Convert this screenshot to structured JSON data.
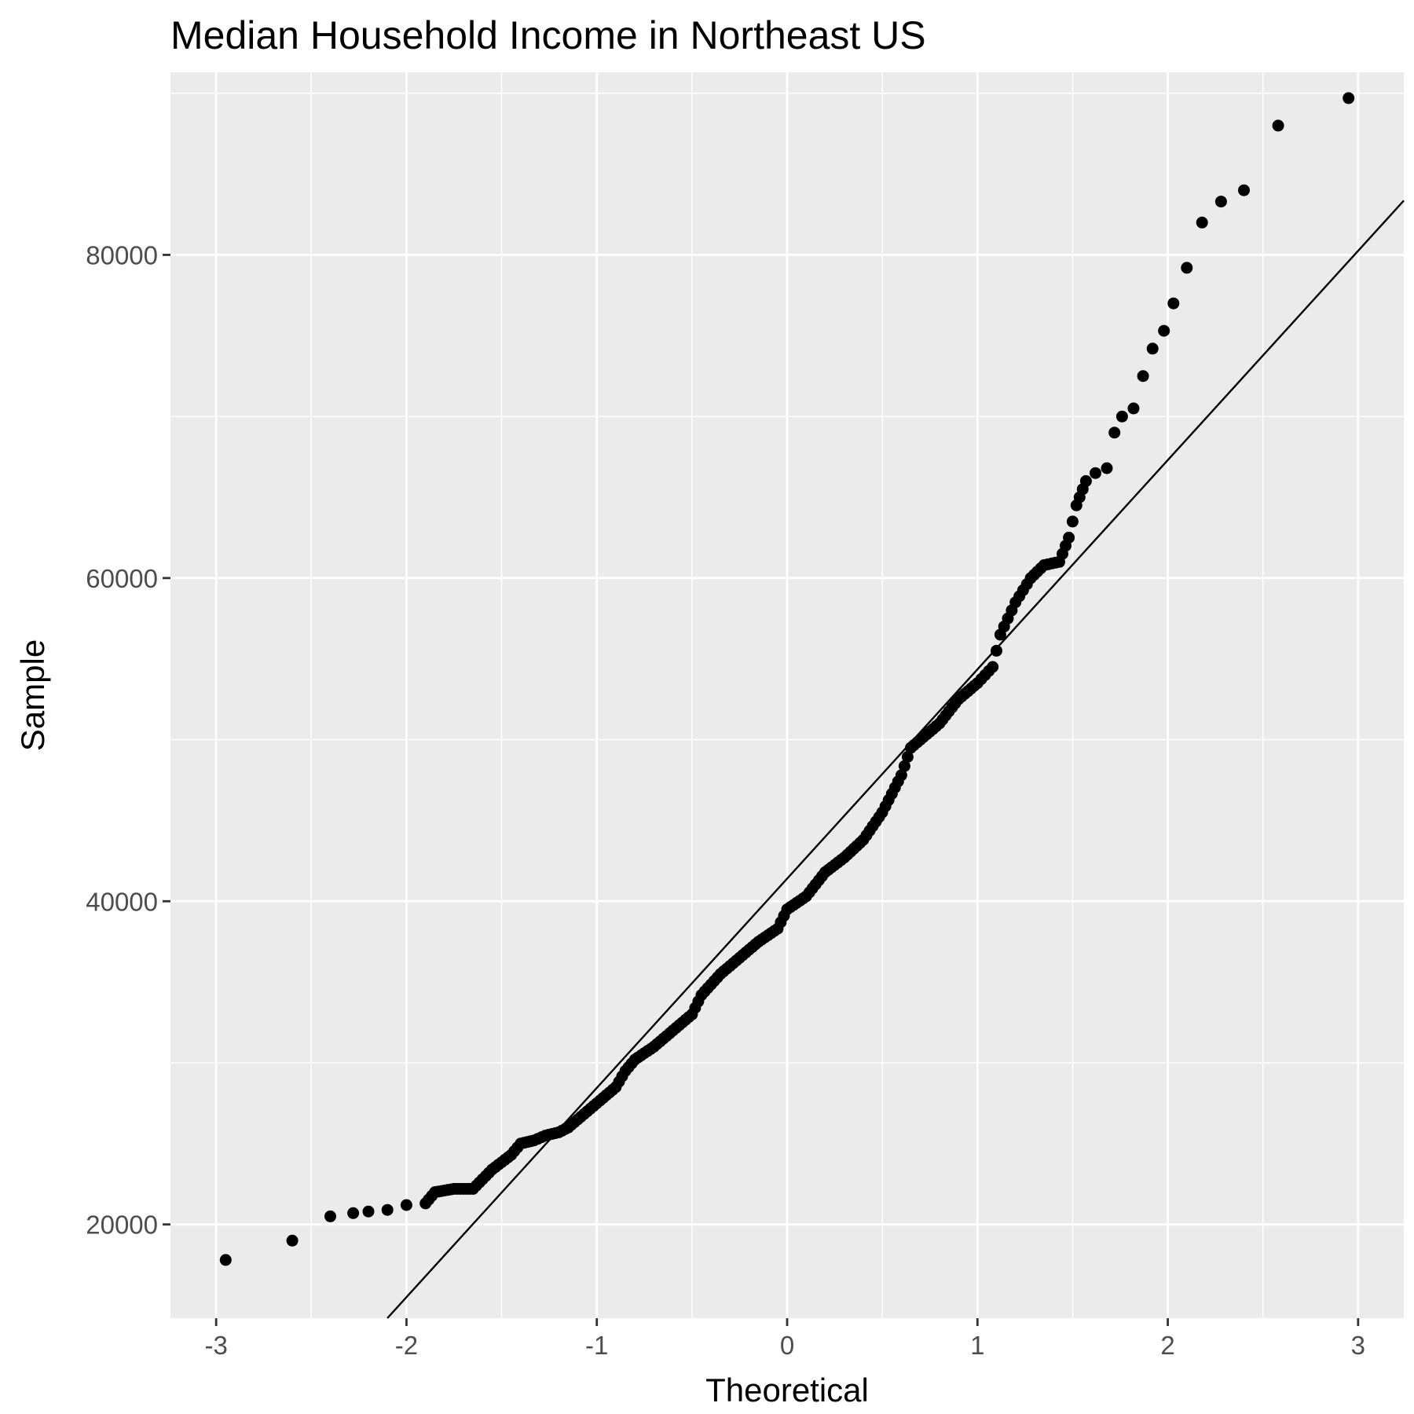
{
  "chart_data": {
    "type": "scatter",
    "title": "Median Household Income in Northeast US",
    "xlabel": "Theoretical",
    "ylabel": "Sample",
    "xlim": [
      -3.24,
      3.24
    ],
    "ylim": [
      14200,
      91300
    ],
    "x_ticks": [
      -3,
      -2,
      -1,
      0,
      1,
      2,
      3
    ],
    "x_tick_labels": [
      "-3",
      "-2",
      "-1",
      "0",
      "1",
      "2",
      "3"
    ],
    "y_ticks": [
      20000,
      40000,
      60000,
      80000
    ],
    "y_tick_labels": [
      "20000",
      "40000",
      "60000",
      "80000"
    ],
    "grid": true,
    "background": "#ebebeb",
    "grid_color": "#ffffff",
    "point_color": "#000000",
    "reference_line": {
      "slope": 12950,
      "intercept": 41400,
      "color": "#000000"
    },
    "anchors": [
      [
        -2.95,
        17800
      ],
      [
        -2.6,
        19000
      ],
      [
        -2.4,
        20500
      ],
      [
        -2.28,
        20700
      ],
      [
        -2.2,
        20800
      ],
      [
        -2.1,
        20900
      ],
      [
        -2.0,
        21200
      ],
      [
        -1.9,
        21300
      ],
      [
        -1.85,
        22000
      ],
      [
        -1.75,
        22200
      ],
      [
        -1.65,
        22200
      ],
      [
        -1.6,
        22800
      ],
      [
        -1.55,
        23400
      ],
      [
        -1.45,
        24300
      ],
      [
        -1.4,
        25000
      ],
      [
        -1.33,
        25200
      ],
      [
        -1.27,
        25500
      ],
      [
        -1.2,
        25700
      ],
      [
        -1.15,
        26000
      ],
      [
        -1.1,
        26500
      ],
      [
        -1.0,
        27500
      ],
      [
        -0.9,
        28500
      ],
      [
        -0.85,
        29500
      ],
      [
        -0.8,
        30200
      ],
      [
        -0.7,
        31000
      ],
      [
        -0.6,
        32000
      ],
      [
        -0.5,
        33000
      ],
      [
        -0.45,
        34200
      ],
      [
        -0.35,
        35500
      ],
      [
        -0.25,
        36500
      ],
      [
        -0.15,
        37500
      ],
      [
        -0.05,
        38300
      ],
      [
        0.0,
        39500
      ],
      [
        0.1,
        40300
      ],
      [
        0.2,
        41800
      ],
      [
        0.3,
        42700
      ],
      [
        0.4,
        43800
      ],
      [
        0.5,
        45500
      ],
      [
        0.6,
        47800
      ],
      [
        0.65,
        49500
      ],
      [
        0.7,
        50000
      ],
      [
        0.8,
        51000
      ],
      [
        0.9,
        52500
      ],
      [
        1.0,
        53500
      ],
      [
        1.08,
        54500
      ],
      [
        1.12,
        56500
      ],
      [
        1.2,
        58500
      ],
      [
        1.28,
        60000
      ],
      [
        1.35,
        60800
      ],
      [
        1.43,
        61000
      ],
      [
        1.48,
        62500
      ],
      [
        1.52,
        64500
      ],
      [
        1.57,
        66000
      ],
      [
        1.62,
        66500
      ],
      [
        1.68,
        66800
      ],
      [
        1.72,
        69000
      ],
      [
        1.76,
        70000
      ],
      [
        1.82,
        70500
      ],
      [
        1.87,
        72500
      ],
      [
        1.92,
        74200
      ],
      [
        1.98,
        75300
      ],
      [
        2.03,
        77000
      ],
      [
        2.1,
        79200
      ],
      [
        2.18,
        82000
      ],
      [
        2.28,
        83300
      ],
      [
        2.4,
        84000
      ],
      [
        2.58,
        88000
      ],
      [
        2.95,
        89700
      ]
    ]
  }
}
